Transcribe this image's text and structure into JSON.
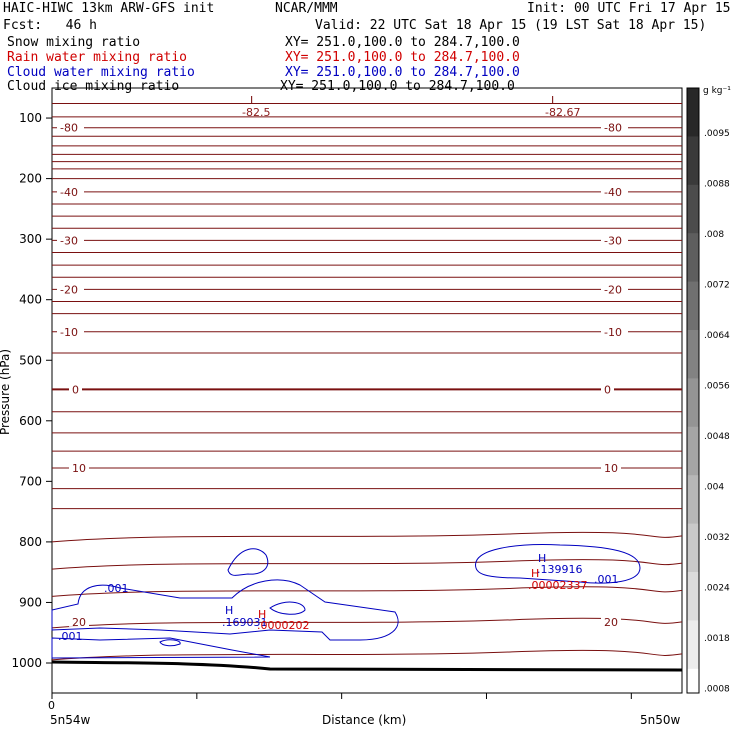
{
  "header": {
    "title_left": "HAIC-HIWC 13km ARW-GFS init",
    "org": "NCAR/MMM",
    "init": "Init: 00 UTC Fri 17 Apr 15",
    "fcst": "Fcst:   46 h",
    "valid": "Valid: 22 UTC Sat 18 Apr 15 (19 LST Sat 18 Apr 15)"
  },
  "fields": [
    {
      "name": "Snow mixing ratio",
      "xy": "XY= 251.0,100.0 to 284.7,100.0",
      "color": "#000000"
    },
    {
      "name": "Rain water mixing ratio",
      "xy": "XY= 251.0,100.0 to 284.7,100.0",
      "color": "#d00000"
    },
    {
      "name": "Cloud water mixing ratio",
      "xy": "XY= 251.0,100.0 to 284.7,100.0",
      "color": "#0000c0"
    },
    {
      "name": "Cloud ice mixing ratio",
      "xy": "XY= 251.0,100.0 to 284.7,100.0",
      "color": "#000000"
    }
  ],
  "colorbar": {
    "unit": "g kg⁻¹",
    "ticks": [
      ".0095",
      ".0088",
      ".008",
      ".0072",
      ".0064",
      ".0056",
      ".0048",
      ".004",
      ".0032",
      ".0024",
      ".0018",
      ".0008"
    ]
  },
  "chart_data": {
    "type": "contour cross-section",
    "ylabel": "Pressure (hPa)",
    "xlabel": "Distance (km)",
    "x_start_label": "5n54w",
    "x_end_label": "5n50w",
    "x_zero_tick": "0",
    "y_ticks": [
      100,
      200,
      300,
      400,
      500,
      600,
      700,
      800,
      900,
      1000
    ],
    "ylim": [
      1050,
      65
    ],
    "temperature_contours": [
      {
        "label": "-80",
        "p": 116
      },
      {
        "label": "-40",
        "p": 222
      },
      {
        "label": "-30",
        "p": 302
      },
      {
        "label": "-20",
        "p": 383
      },
      {
        "label": "-10",
        "p": 453
      },
      {
        "label": "0",
        "p": 548
      },
      {
        "label": "10",
        "p": 678
      },
      {
        "label": "20",
        "p": 932
      }
    ],
    "extrema": [
      {
        "type": "L",
        "value": "-82.5",
        "color": "#8b1a1a"
      },
      {
        "type": "L",
        "value": "-82.67",
        "color": "#8b1a1a"
      },
      {
        "type": "H",
        "value": ".169031",
        "color": "#0000c0"
      },
      {
        "type": "H",
        "value": ".0000202",
        "color": "#d00000"
      },
      {
        "type": "H",
        "value": ".139916",
        "color": "#0000c0"
      },
      {
        "type": "H",
        "value": ".00002337",
        "color": "#d00000"
      }
    ],
    "cloud_water_labels": [
      ".001",
      ".001",
      ".001"
    ]
  }
}
